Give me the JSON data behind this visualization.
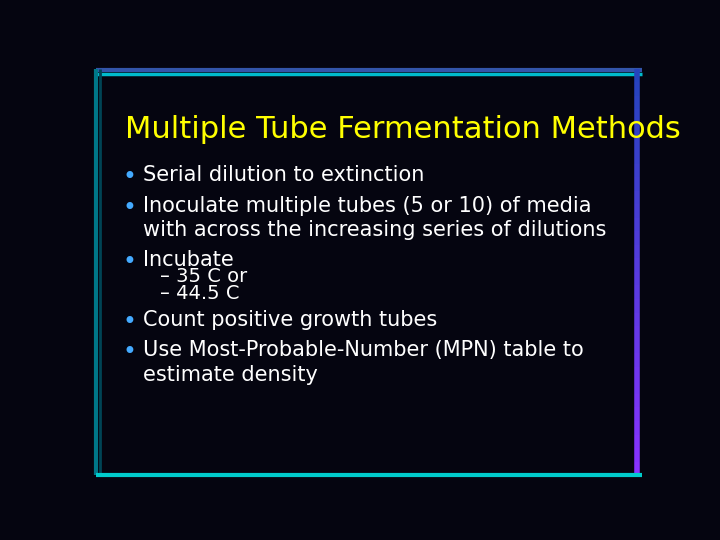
{
  "title": "Multiple Tube Fermentation Methods",
  "title_color": "#FFFF00",
  "title_fontsize": 22,
  "background_color": "#050510",
  "text_color": "#FFFFFF",
  "bullet_color": "#44AAFF",
  "sub_dash_color": "#00DDDD",
  "bullet_points": [
    "Serial dilution to extinction",
    "Inoculate multiple tubes (5 or 10) of media\nwith across the increasing series of dilutions",
    "Incubate"
  ],
  "sub_bullets": [
    "– 35 C or",
    "– 44.5 C"
  ],
  "bullet_points2": [
    "Count positive growth tubes",
    "Use Most-Probable-Number (MPN) table to\nestimate density"
  ],
  "bullet_fontsize": 15,
  "sub_bullet_fontsize": 14,
  "border_left_color": "#006666",
  "border_right_top_color": "#8855FF",
  "border_right_bot_color": "#3366AA",
  "border_top_color": "#4455AA",
  "border_bottom_color": "#00CCCC"
}
